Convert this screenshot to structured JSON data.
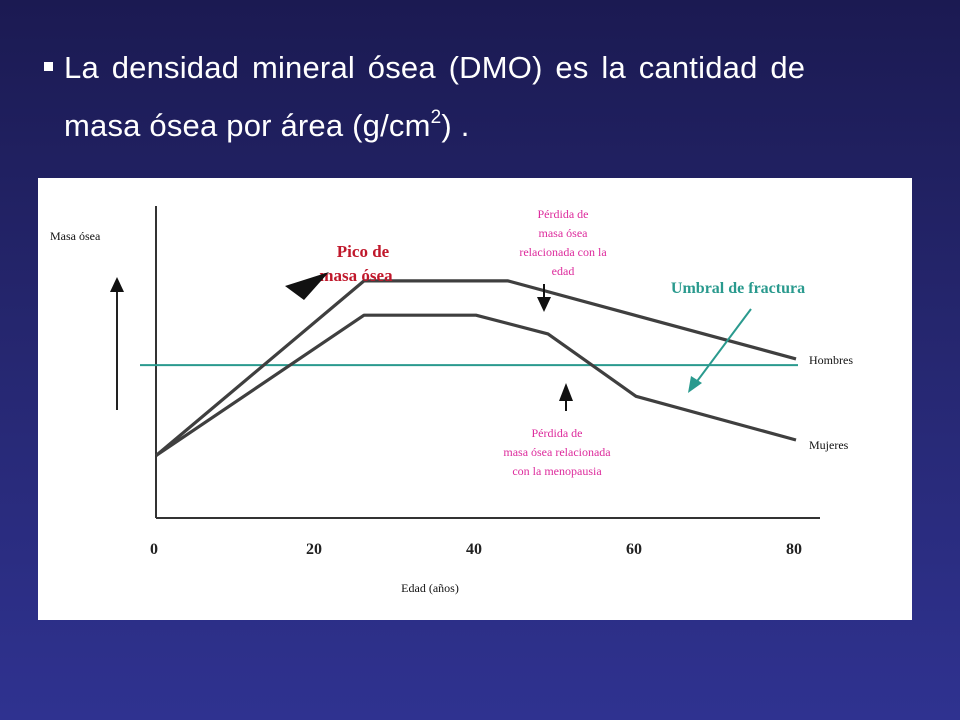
{
  "slide": {
    "bullet_marker": "▪",
    "line1": "La densidad mineral ósea (DMO) es la cantidad de",
    "line2_main": "masa ósea por área (g/cm",
    "line2_sup": "2",
    "line2_end": ") ."
  },
  "chart_data": {
    "type": "line",
    "xlabel": "Edad (años)",
    "ylabel": "Masa ósea",
    "x_ticks": [
      "0",
      "20",
      "40",
      "60",
      "80"
    ],
    "xlim": [
      0,
      80
    ],
    "ylim": [
      0,
      100
    ],
    "grid": false,
    "series": [
      {
        "name": "Hombres",
        "color": "#3f3f3f",
        "x": [
          0,
          26,
          44,
          80
        ],
        "y": [
          20,
          76,
          76,
          51
        ]
      },
      {
        "name": "Mujeres",
        "color": "#3f3f3f",
        "x": [
          0,
          26,
          40,
          49,
          60,
          80
        ],
        "y": [
          20,
          65,
          65,
          59,
          39,
          25
        ]
      }
    ],
    "threshold": {
      "label": "Umbral de fractura",
      "y": 49,
      "color": "#2a9a8e"
    },
    "annotations": [
      {
        "id": "peak",
        "text": [
          "Pico de",
          "masa ósea"
        ],
        "color": "#c0182b"
      },
      {
        "id": "age_loss",
        "text": [
          "Pérdida de",
          "masa ósea",
          "relacionada con la",
          "edad"
        ],
        "color": "#dd2b9c"
      },
      {
        "id": "menopause_loss",
        "text": [
          "Pérdida de",
          "masa ósea relacionada",
          "con la menopausia"
        ],
        "color": "#dd2b9c"
      }
    ]
  }
}
